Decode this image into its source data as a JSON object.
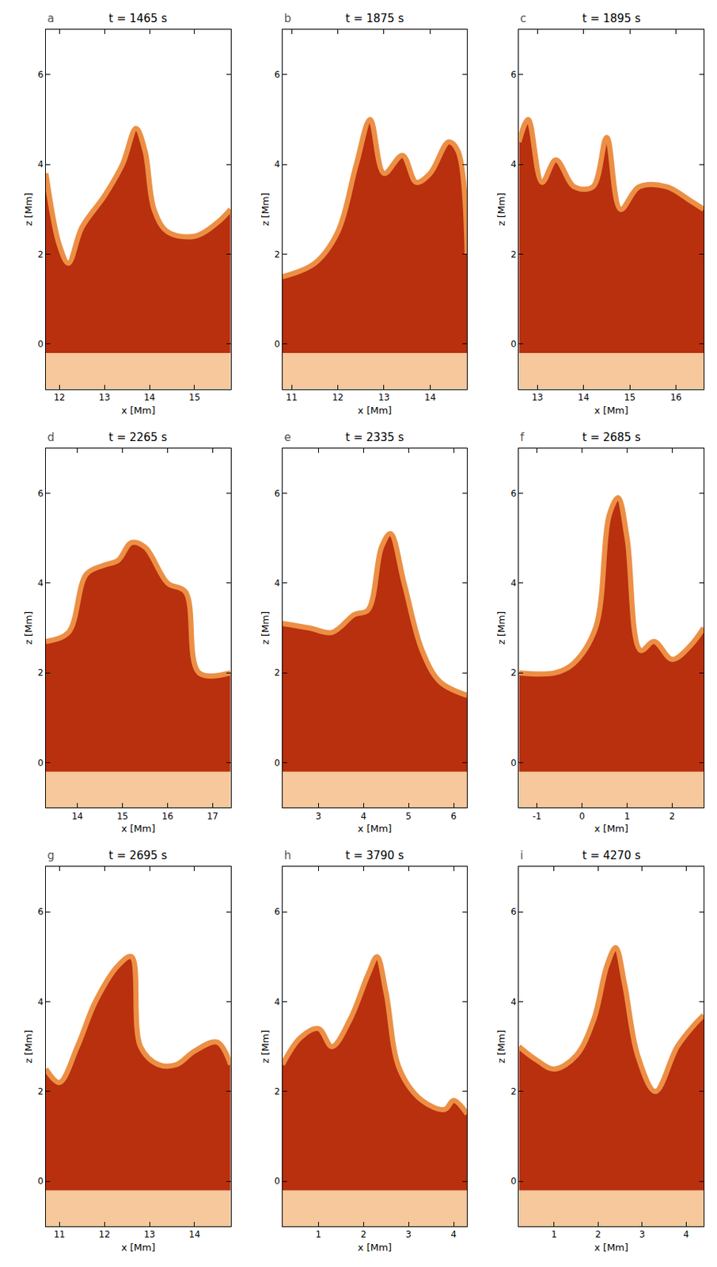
{
  "chart_data": [
    {
      "type": "area",
      "title": "t = 1465 s",
      "letter": "a",
      "xlabel": "x [Mm]",
      "ylabel": "z [Mm]",
      "xlim": [
        11.7,
        15.8
      ],
      "xticks": [
        12,
        13,
        14,
        15
      ],
      "ylim": [
        -1,
        7
      ],
      "yticks": [
        0,
        2,
        4,
        6
      ],
      "surface_z": -0.2,
      "x": [
        11.7,
        12.0,
        12.2,
        12.5,
        13.0,
        13.4,
        13.7,
        13.9,
        14.1,
        14.4,
        15.0,
        15.5,
        15.8
      ],
      "values": [
        3.8,
        2.2,
        1.8,
        2.6,
        3.3,
        4.0,
        4.8,
        4.3,
        3.0,
        2.5,
        2.4,
        2.7,
        3.0
      ],
      "color": "#b8300e"
    },
    {
      "type": "area",
      "title": "t = 1875 s",
      "letter": "b",
      "xlabel": "x [Mm]",
      "ylabel": "z [Mm]",
      "xlim": [
        10.8,
        14.8
      ],
      "xticks": [
        11,
        12,
        13,
        14
      ],
      "ylim": [
        -1,
        7
      ],
      "yticks": [
        0,
        2,
        4,
        6
      ],
      "surface_z": -0.2,
      "x": [
        10.8,
        11.5,
        12.0,
        12.4,
        12.7,
        13.0,
        13.4,
        13.7,
        14.0,
        14.4,
        14.6,
        14.8
      ],
      "values": [
        1.5,
        1.8,
        2.5,
        4.0,
        5.0,
        3.8,
        4.2,
        3.6,
        3.8,
        4.5,
        4.3,
        2.0
      ],
      "color": "#b8300e"
    },
    {
      "type": "area",
      "title": "t = 1895 s",
      "letter": "c",
      "xlabel": "x [Mm]",
      "ylabel": "z [Mm]",
      "xlim": [
        12.6,
        16.6
      ],
      "xticks": [
        13,
        14,
        15,
        16
      ],
      "ylim": [
        -1,
        7
      ],
      "yticks": [
        0,
        2,
        4,
        6
      ],
      "surface_z": -0.2,
      "x": [
        12.6,
        12.8,
        13.1,
        13.4,
        13.8,
        14.2,
        14.5,
        14.8,
        15.2,
        15.8,
        16.3,
        16.6
      ],
      "values": [
        4.5,
        5.0,
        3.6,
        4.1,
        3.5,
        3.5,
        4.6,
        3.0,
        3.5,
        3.5,
        3.2,
        3.0
      ],
      "color": "#b8300e"
    },
    {
      "type": "area",
      "title": "t = 2265 s",
      "letter": "d",
      "xlabel": "x [Mm]",
      "ylabel": "z [Mm]",
      "xlim": [
        13.3,
        17.4
      ],
      "xticks": [
        14,
        15,
        16,
        17
      ],
      "ylim": [
        -1,
        7
      ],
      "yticks": [
        0,
        2,
        4,
        6
      ],
      "surface_z": -0.2,
      "x": [
        13.3,
        13.8,
        14.2,
        14.6,
        14.9,
        15.2,
        15.5,
        16.0,
        16.4,
        16.7,
        17.4
      ],
      "values": [
        2.7,
        2.9,
        4.2,
        4.4,
        4.5,
        4.9,
        4.8,
        4.0,
        3.8,
        2.0,
        2.0
      ],
      "color": "#b8300e"
    },
    {
      "type": "area",
      "title": "t = 2335 s",
      "letter": "e",
      "xlabel": "x [Mm]",
      "ylabel": "z [Mm]",
      "xlim": [
        2.2,
        6.3
      ],
      "xticks": [
        3,
        4,
        5,
        6
      ],
      "ylim": [
        -1,
        7
      ],
      "yticks": [
        0,
        2,
        4,
        6
      ],
      "surface_z": -0.2,
      "x": [
        2.2,
        2.8,
        3.3,
        3.8,
        4.1,
        4.4,
        4.6,
        4.9,
        5.3,
        5.7,
        6.3
      ],
      "values": [
        3.1,
        3.0,
        2.9,
        3.3,
        3.4,
        4.8,
        5.1,
        4.0,
        2.5,
        1.8,
        1.5
      ],
      "color": "#b8300e"
    },
    {
      "type": "area",
      "title": "t = 2685 s",
      "letter": "f",
      "xlabel": "x [Mm]",
      "ylabel": "z [Mm]",
      "xlim": [
        -1.4,
        2.7
      ],
      "xticks": [
        -1,
        0,
        1,
        2
      ],
      "ylim": [
        -1,
        7
      ],
      "yticks": [
        0,
        2,
        4,
        6
      ],
      "surface_z": -0.2,
      "x": [
        -1.4,
        -0.6,
        -0.2,
        0.3,
        0.6,
        0.8,
        1.0,
        1.3,
        1.6,
        2.0,
        2.4,
        2.7
      ],
      "values": [
        2.0,
        2.0,
        2.2,
        3.0,
        5.5,
        5.9,
        5.0,
        2.5,
        2.7,
        2.3,
        2.6,
        3.0
      ],
      "color": "#b8300e"
    },
    {
      "type": "area",
      "title": "t = 2695 s",
      "letter": "g",
      "xlabel": "x [Mm]",
      "ylabel": "z [Mm]",
      "xlim": [
        10.7,
        14.8
      ],
      "xticks": [
        11,
        12,
        13,
        14
      ],
      "ylim": [
        -1,
        7
      ],
      "yticks": [
        0,
        2,
        4,
        6
      ],
      "surface_z": -0.2,
      "x": [
        10.7,
        11.0,
        11.4,
        11.8,
        12.3,
        12.6,
        12.8,
        13.2,
        13.6,
        14.0,
        14.5,
        14.8
      ],
      "values": [
        2.5,
        2.2,
        3.0,
        4.0,
        4.8,
        5.0,
        3.0,
        2.6,
        2.6,
        2.9,
        3.1,
        2.6
      ],
      "color": "#b8300e"
    },
    {
      "type": "area",
      "title": "t = 3790 s",
      "letter": "h",
      "xlabel": "x [Mm]",
      "ylabel": "z [Mm]",
      "xlim": [
        0.2,
        4.3
      ],
      "xticks": [
        1,
        2,
        3,
        4
      ],
      "ylim": [
        -1,
        7
      ],
      "yticks": [
        0,
        2,
        4,
        6
      ],
      "surface_z": -0.2,
      "x": [
        0.2,
        0.6,
        1.0,
        1.3,
        1.7,
        2.1,
        2.3,
        2.5,
        2.8,
        3.3,
        3.8,
        4.0,
        4.3
      ],
      "values": [
        2.6,
        3.2,
        3.4,
        3.0,
        3.6,
        4.6,
        5.0,
        4.2,
        2.5,
        1.8,
        1.6,
        1.8,
        1.5
      ],
      "color": "#b8300e"
    },
    {
      "type": "area",
      "title": "t = 4270 s",
      "letter": "i",
      "xlabel": "x [Mm]",
      "ylabel": "z [Mm]",
      "xlim": [
        0.2,
        4.4
      ],
      "xticks": [
        1,
        2,
        3,
        4
      ],
      "ylim": [
        -1,
        7
      ],
      "yticks": [
        0,
        2,
        4,
        6
      ],
      "surface_z": -0.2,
      "x": [
        0.2,
        0.6,
        1.0,
        1.5,
        1.9,
        2.2,
        2.4,
        2.6,
        2.9,
        3.3,
        3.8,
        4.2,
        4.4
      ],
      "values": [
        3.0,
        2.7,
        2.5,
        2.8,
        3.6,
        4.8,
        5.2,
        4.4,
        2.8,
        2.0,
        3.0,
        3.5,
        3.7
      ],
      "color": "#b8300e"
    }
  ]
}
